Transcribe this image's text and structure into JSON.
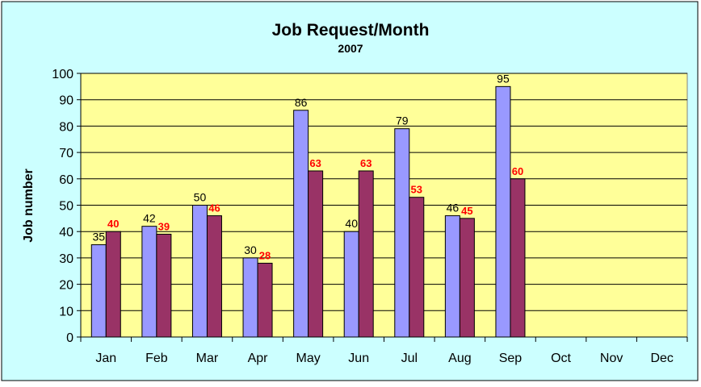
{
  "chart_data": {
    "type": "bar",
    "title": "Job Request/Month",
    "subtitle": "2007",
    "xlabel": "",
    "ylabel": "Job number",
    "ylim": [
      0,
      100
    ],
    "yticks": [
      0,
      10,
      20,
      30,
      40,
      50,
      60,
      70,
      80,
      90,
      100
    ],
    "grid": true,
    "legend": "none",
    "categories": [
      "Jan",
      "Feb",
      "Mar",
      "Apr",
      "May",
      "Jun",
      "Jul",
      "Aug",
      "Sep",
      "Oct",
      "Nov",
      "Dec"
    ],
    "series": [
      {
        "values": [
          35,
          42,
          50,
          30,
          86,
          40,
          79,
          46,
          95,
          null,
          null,
          null
        ],
        "color": "#9999ff",
        "label_color": "#000000"
      },
      {
        "values": [
          40,
          39,
          46,
          28,
          63,
          63,
          53,
          45,
          60,
          null,
          null,
          null
        ],
        "color": "#993366",
        "label_color": "#ff0000"
      }
    ],
    "colors": {
      "outer_background": "#ccffff",
      "plot_background": "#ffff99"
    }
  }
}
